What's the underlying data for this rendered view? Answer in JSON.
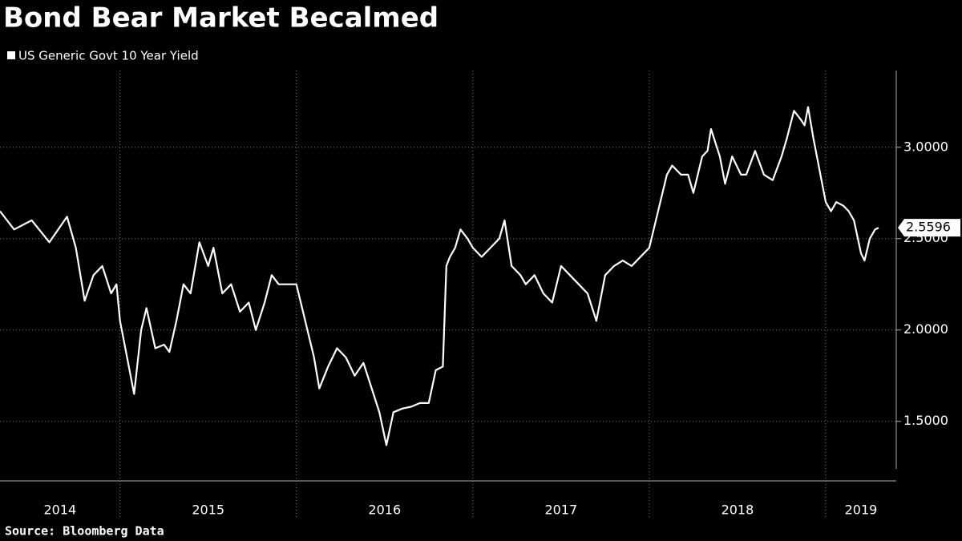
{
  "chart_data": {
    "type": "line",
    "title": "Bond Bear Market Becalmed",
    "source": "Source: Bloomberg Data",
    "year_labels": [
      "2014",
      "2015",
      "2016",
      "2017",
      "2018",
      "2019"
    ],
    "xlim": [
      2014.32,
      2019.4
    ],
    "xticks": [
      2015,
      2016,
      2017,
      2018,
      2019
    ],
    "ylim": [
      1.24,
      3.42
    ],
    "yticks": [
      {
        "value": 1.5,
        "label": "1.5000"
      },
      {
        "value": 2.0,
        "label": "2.0000"
      },
      {
        "value": 2.5,
        "label": "2.5000"
      },
      {
        "value": 3.0,
        "label": "3.0000"
      }
    ],
    "grid": true,
    "series": [
      {
        "name": "US Generic Govt 10 Year Yield",
        "color": "#ffffff",
        "x": [
          2014.32,
          2014.4,
          2014.5,
          2014.6,
          2014.7,
          2014.75,
          2014.8,
          2014.85,
          2014.9,
          2014.95,
          2014.98,
          2015.0,
          2015.05,
          2015.08,
          2015.12,
          2015.15,
          2015.2,
          2015.25,
          2015.28,
          2015.32,
          2015.36,
          2015.4,
          2015.45,
          2015.5,
          2015.53,
          2015.58,
          2015.63,
          2015.68,
          2015.73,
          2015.77,
          2015.82,
          2015.86,
          2015.9,
          2015.95,
          2016.0,
          2016.05,
          2016.1,
          2016.13,
          2016.18,
          2016.23,
          2016.28,
          2016.33,
          2016.38,
          2016.42,
          2016.47,
          2016.51,
          2016.55,
          2016.6,
          2016.65,
          2016.7,
          2016.75,
          2016.79,
          2016.83,
          2016.85,
          2016.87,
          2016.9,
          2016.93,
          2016.97,
          2017.0,
          2017.05,
          2017.1,
          2017.15,
          2017.18,
          2017.22,
          2017.27,
          2017.3,
          2017.35,
          2017.4,
          2017.45,
          2017.5,
          2017.55,
          2017.6,
          2017.65,
          2017.7,
          2017.75,
          2017.8,
          2017.85,
          2017.9,
          2017.95,
          2018.0,
          2018.05,
          2018.1,
          2018.13,
          2018.18,
          2018.22,
          2018.25,
          2018.3,
          2018.33,
          2018.35,
          2018.4,
          2018.43,
          2018.47,
          2018.52,
          2018.55,
          2018.6,
          2018.65,
          2018.7,
          2018.75,
          2018.78,
          2018.82,
          2018.86,
          2018.88,
          2018.9,
          2018.93,
          2018.96,
          2019.0,
          2019.03,
          2019.06,
          2019.1,
          2019.13,
          2019.16,
          2019.2,
          2019.22,
          2019.25,
          2019.28,
          2019.3
        ],
        "values": [
          2.65,
          2.55,
          2.6,
          2.48,
          2.62,
          2.45,
          2.16,
          2.3,
          2.35,
          2.2,
          2.25,
          2.05,
          1.8,
          1.65,
          2.0,
          2.12,
          1.9,
          1.92,
          1.88,
          2.05,
          2.25,
          2.2,
          2.48,
          2.35,
          2.45,
          2.2,
          2.25,
          2.1,
          2.15,
          2.0,
          2.15,
          2.3,
          2.25,
          2.25,
          2.25,
          2.05,
          1.85,
          1.68,
          1.8,
          1.9,
          1.85,
          1.75,
          1.82,
          1.7,
          1.55,
          1.37,
          1.55,
          1.57,
          1.58,
          1.6,
          1.6,
          1.78,
          1.8,
          2.35,
          2.4,
          2.45,
          2.55,
          2.5,
          2.45,
          2.4,
          2.45,
          2.5,
          2.6,
          2.35,
          2.3,
          2.25,
          2.3,
          2.2,
          2.15,
          2.35,
          2.3,
          2.25,
          2.2,
          2.05,
          2.3,
          2.35,
          2.38,
          2.35,
          2.4,
          2.45,
          2.65,
          2.85,
          2.9,
          2.85,
          2.85,
          2.75,
          2.95,
          2.98,
          3.1,
          2.95,
          2.8,
          2.95,
          2.85,
          2.85,
          2.98,
          2.85,
          2.82,
          2.95,
          3.05,
          3.2,
          3.15,
          3.12,
          3.22,
          3.05,
          2.9,
          2.7,
          2.65,
          2.7,
          2.68,
          2.65,
          2.6,
          2.42,
          2.38,
          2.5,
          2.55,
          2.5596
        ]
      }
    ]
  }
}
